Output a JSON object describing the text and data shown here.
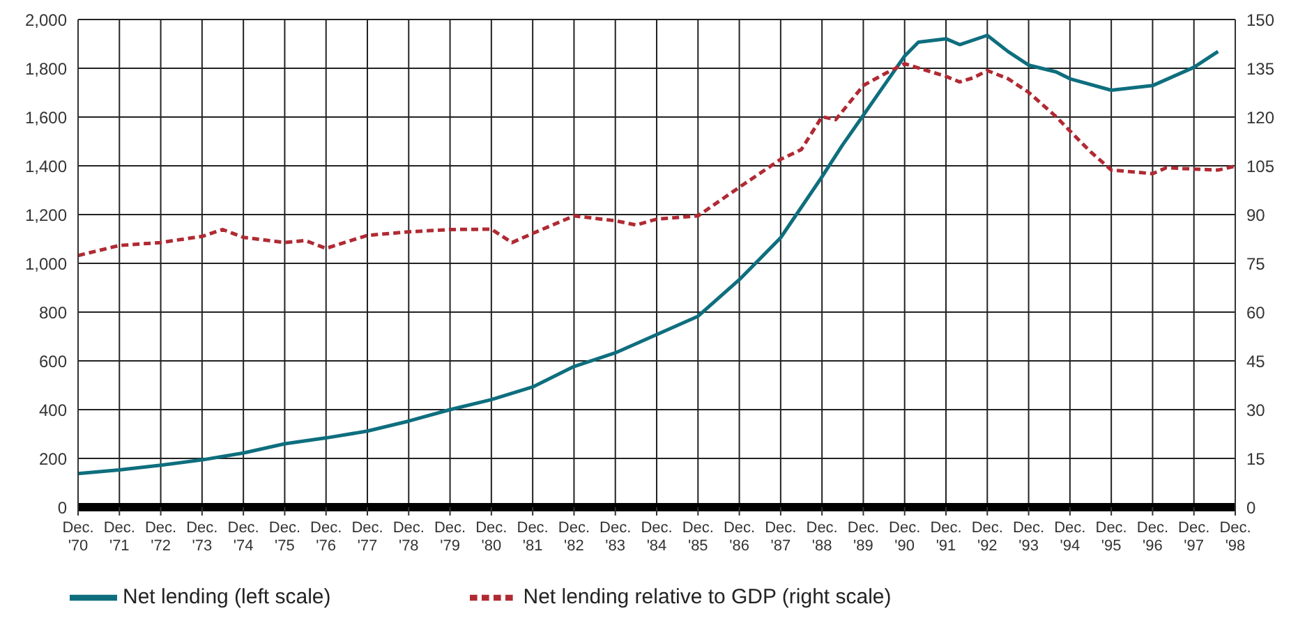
{
  "chart_data": {
    "type": "line",
    "xlim": [
      "1970-12",
      "1998-12"
    ],
    "xticks": [
      {
        "value": "1970-12",
        "label": "Dec. '70"
      },
      {
        "value": "1971-12",
        "label": "Dec. '71"
      },
      {
        "value": "1972-12",
        "label": "Dec. '72"
      },
      {
        "value": "1973-12",
        "label": "Dec. '73"
      },
      {
        "value": "1974-12",
        "label": "Dec. '74"
      },
      {
        "value": "1975-12",
        "label": "Dec. '75"
      },
      {
        "value": "1976-12",
        "label": "Dec. '76"
      },
      {
        "value": "1977-12",
        "label": "Dec. '77"
      },
      {
        "value": "1978-12",
        "label": "Dec. '78"
      },
      {
        "value": "1979-12",
        "label": "Dec. '79"
      },
      {
        "value": "1980-12",
        "label": "Dec. '80"
      },
      {
        "value": "1981-12",
        "label": "Dec. '81"
      },
      {
        "value": "1982-12",
        "label": "Dec. '82"
      },
      {
        "value": "1983-12",
        "label": "Dec. '83"
      },
      {
        "value": "1984-12",
        "label": "Dec. '84"
      },
      {
        "value": "1985-12",
        "label": "Dec. '85"
      },
      {
        "value": "1986-12",
        "label": "Dec. '86"
      },
      {
        "value": "1987-12",
        "label": "Dec. '87"
      },
      {
        "value": "1988-12",
        "label": "Dec. '88"
      },
      {
        "value": "1989-12",
        "label": "Dec. '89"
      },
      {
        "value": "1990-12",
        "label": "Dec. '90"
      },
      {
        "value": "1991-12",
        "label": "Dec. '91"
      },
      {
        "value": "1992-12",
        "label": "Dec. '92"
      },
      {
        "value": "1993-12",
        "label": "Dec. '93"
      },
      {
        "value": "1994-12",
        "label": "Dec. '94"
      },
      {
        "value": "1995-12",
        "label": "Dec. '95"
      },
      {
        "value": "1996-12",
        "label": "Dec. '96"
      },
      {
        "value": "1997-12",
        "label": "Dec. '97"
      },
      {
        "value": "1998-12",
        "label": "Dec. '98"
      }
    ],
    "ylim": [
      0,
      2000
    ],
    "yticks": [
      0,
      200,
      400,
      600,
      800,
      {
        "value": 1000,
        "label": "1,000"
      },
      {
        "value": 1200,
        "label": "1,200"
      },
      {
        "value": 1400,
        "label": "1,400"
      },
      {
        "value": 1600,
        "label": "1,600"
      },
      {
        "value": 1800,
        "label": "1,800"
      },
      {
        "value": 2000,
        "label": "2,000"
      }
    ],
    "y2lim": [
      0,
      150
    ],
    "y2ticks": [
      0,
      15,
      30,
      45,
      60,
      75,
      90,
      105,
      120,
      135,
      150
    ],
    "grid": true,
    "legend": "bottom",
    "marker": "none",
    "series": [
      {
        "name": "Net lending (left scale)",
        "color": "#0e6e7e",
        "line_style": "solid",
        "x": [
          "1970-12",
          "1971-12",
          "1972-12",
          "1973-12",
          "1974-12",
          "1975-12",
          "1976-12",
          "1977-12",
          "1978-12",
          "1979-12",
          "1980-12",
          "1981-12",
          "1982-12",
          "1983-12",
          "1984-12",
          "1985-12",
          "1986-12",
          "1987-12",
          "1988-12",
          "1989-06",
          "1989-12",
          "1990-06",
          "1990-12",
          "1991-04",
          "1991-12",
          "1992-04",
          "1992-12",
          "1993-06",
          "1993-12",
          "1994-08",
          "1994-12",
          "1995-12",
          "1996-12",
          "1997-12",
          "1998-07"
        ],
        "values": [
          138,
          153,
          172,
          194,
          222,
          260,
          284,
          312,
          353,
          400,
          441,
          493,
          577,
          633,
          708,
          783,
          933,
          1105,
          1355,
          1486,
          1607,
          1729,
          1850,
          1907,
          1921,
          1897,
          1935,
          1869,
          1813,
          1785,
          1757,
          1710,
          1729,
          1804,
          1869
        ]
      },
      {
        "name": "Net lending relative to GDP (right scale)",
        "color": "#b02a33",
        "line_style": "dashed",
        "axis": "y2",
        "x": [
          "1970-12",
          "1971-12",
          "1972-12",
          "1973-12",
          "1974-06",
          "1974-12",
          "1975-12",
          "1976-06",
          "1976-12",
          "1977-12",
          "1978-12",
          "1979-12",
          "1980-12",
          "1981-06",
          "1981-12",
          "1982-12",
          "1983-12",
          "1984-06",
          "1984-12",
          "1985-12",
          "1986-12",
          "1987-12",
          "1988-06",
          "1988-12",
          "1989-04",
          "1989-12",
          "1990-06",
          "1990-12",
          "1991-12",
          "1992-04",
          "1992-08",
          "1992-12",
          "1993-06",
          "1993-12",
          "1994-08",
          "1994-12",
          "1995-06",
          "1995-12",
          "1996-12",
          "1997-04",
          "1997-12",
          "1998-07",
          "1998-12"
        ],
        "values": [
          77.4,
          80.5,
          81.4,
          83.3,
          85.4,
          83,
          81.4,
          82,
          79.6,
          83.6,
          84.7,
          85.4,
          85.5,
          81.4,
          84.2,
          89.6,
          88.1,
          86.8,
          88.6,
          89.6,
          98.4,
          107,
          110,
          120.1,
          119.2,
          129.7,
          133.2,
          136.4,
          132.5,
          130.8,
          132.1,
          134.3,
          131.8,
          127.6,
          120.1,
          115.7,
          109.3,
          103.7,
          102.6,
          104.4,
          104,
          103.7,
          104.9
        ]
      }
    ]
  }
}
